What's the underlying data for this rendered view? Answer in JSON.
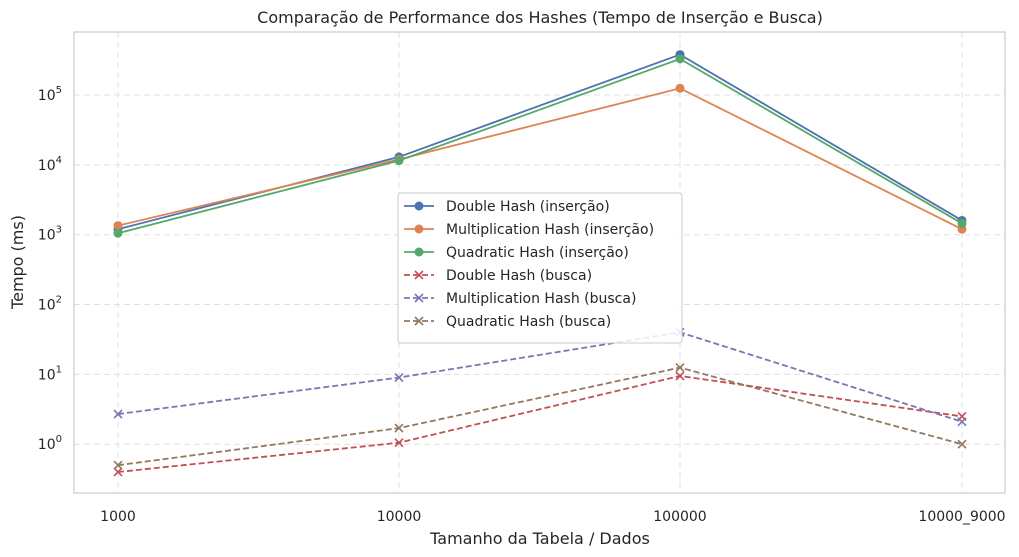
{
  "chart_data": {
    "type": "line",
    "title": "Comparação de Performance dos Hashes (Tempo de Inserção e Busca)",
    "xlabel": "Tamanho da Tabela / Dados",
    "ylabel": "Tempo (ms)",
    "yscale": "log",
    "ylim": [
      0.2,
      800000
    ],
    "grid": true,
    "legend_position": "center",
    "categories": [
      "1000",
      "10000",
      "100000",
      "10000_9000"
    ],
    "yticks": [
      1,
      10,
      100,
      1000,
      10000,
      100000
    ],
    "series": [
      {
        "name": "Double Hash (inserção)",
        "values": [
          1200,
          13000,
          380000,
          1600
        ],
        "color": "#4c72b0",
        "marker": "circle",
        "dash": "solid"
      },
      {
        "name": "Multiplication Hash (inserção)",
        "values": [
          1350,
          12000,
          125000,
          1200
        ],
        "color": "#dd8452",
        "marker": "circle",
        "dash": "solid"
      },
      {
        "name": "Quadratic Hash (inserção)",
        "values": [
          1050,
          11500,
          330000,
          1450
        ],
        "color": "#55a868",
        "marker": "circle",
        "dash": "solid"
      },
      {
        "name": "Double Hash (busca)",
        "values": [
          0.4,
          1.05,
          9.5,
          2.5
        ],
        "color": "#c44e52",
        "marker": "x",
        "dash": "dashed"
      },
      {
        "name": "Multiplication Hash (busca)",
        "values": [
          2.7,
          9.0,
          40,
          2.1
        ],
        "color": "#8172b3",
        "marker": "x",
        "dash": "dashed"
      },
      {
        "name": "Quadratic Hash (busca)",
        "values": [
          0.5,
          1.7,
          12.5,
          1.0
        ],
        "color": "#937860",
        "marker": "x",
        "dash": "dashed"
      }
    ]
  }
}
